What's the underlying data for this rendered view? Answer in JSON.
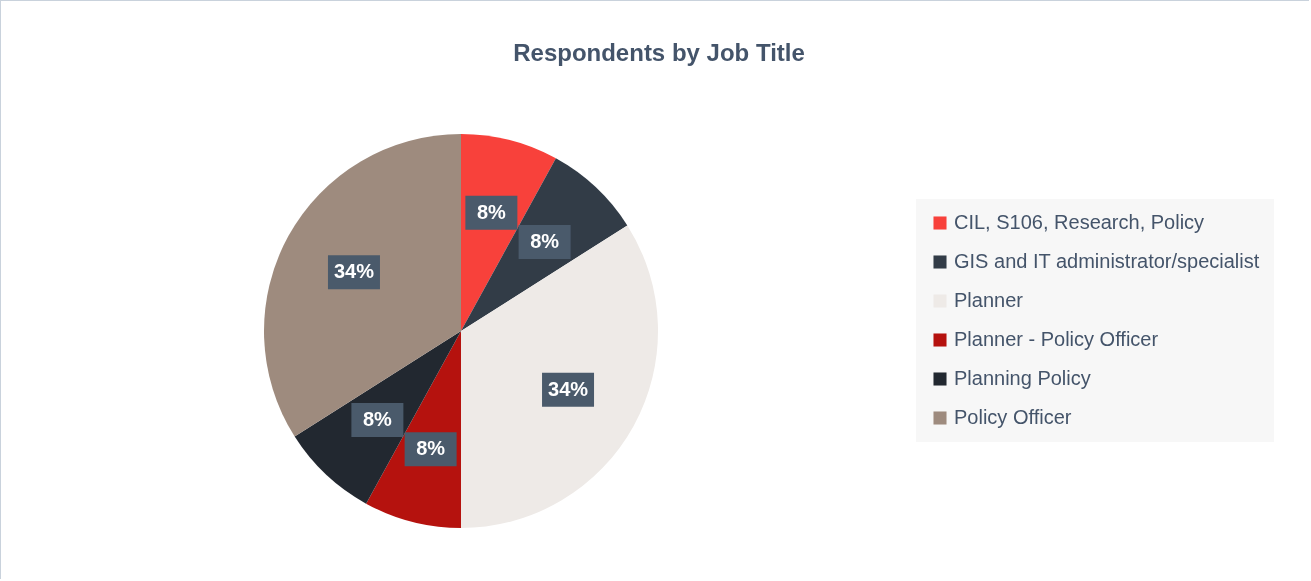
{
  "chart_data": {
    "type": "pie",
    "title": "Respondents by Job Title",
    "categories": [
      "CIL, S106, Research, Policy",
      "GIS and IT administrator/specialist",
      "Planner",
      "Planner  - Policy Officer",
      "Planning Policy",
      "Policy Officer"
    ],
    "values": [
      8,
      8,
      34,
      8,
      8,
      34
    ],
    "value_labels": [
      "8%",
      "8%",
      "34%",
      "8%",
      "8%",
      "34%"
    ],
    "colors": [
      "#f8413b",
      "#323c47",
      "#eeeae7",
      "#b5120e",
      "#222830",
      "#9e8b7e"
    ],
    "legend": "right"
  }
}
